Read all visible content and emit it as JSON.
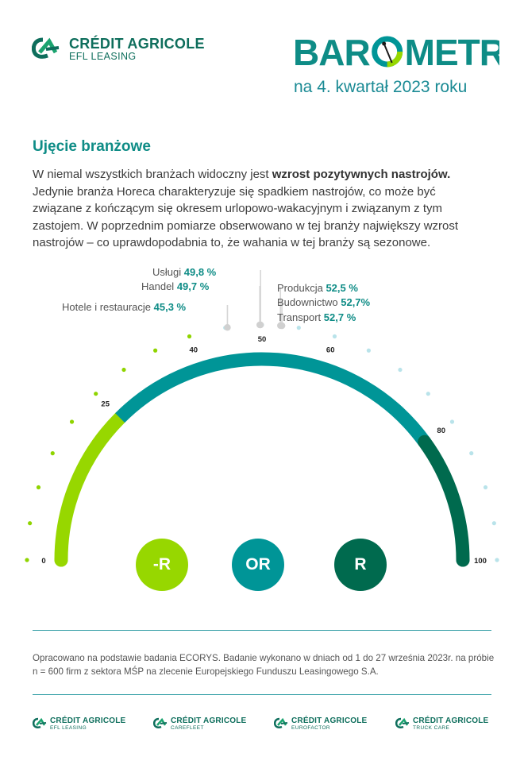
{
  "header": {
    "brand": {
      "name": "CRÉDIT AGRICOLE",
      "division": "EFL LEASING",
      "icon": "credit-agricole-logo-icon"
    },
    "report_title": "BAROMETR",
    "period": "na 4. kwartał 2023 roku"
  },
  "section": {
    "title": "Ujęcie branżowe",
    "paragraph": {
      "lead": "W niemal wszystkich branżach widoczny jest ",
      "bold": "wzrost pozytywnych nastrojów.",
      "rest": " Jedynie branża Horeca charakteryzuje się spadkiem nastrojów, co może być związane z kończącym się okresem urlopowo-wakacyjnym i związanym z tym zastojem. W poprzednim pomiarze obserwowano w tej branży największy wzrost nastrojów – co uprawdopodabnia to, że wahania w tej branży są sezonowe."
    }
  },
  "gauge": {
    "range": [
      0,
      100
    ],
    "tick_labels": [
      "0",
      "25",
      "40",
      "50",
      "60",
      "80",
      "100"
    ],
    "zones": [
      {
        "label": "-R",
        "from": 0,
        "to": 25,
        "color": "#97d700"
      },
      {
        "label": "OR",
        "from": 25,
        "to": 80,
        "color": "#009597"
      },
      {
        "label": "R",
        "from": 80,
        "to": 100,
        "color": "#006a4e"
      }
    ],
    "callouts": [
      {
        "name": "Usługi",
        "value": "49,8 %"
      },
      {
        "name": "Handel",
        "value": "49,7 %"
      },
      {
        "name": "Hotele i restauracje",
        "value": "45,3 %"
      },
      {
        "name": "Produkcja",
        "value": "52,5 %"
      },
      {
        "name": "Budownictwo",
        "value": "52,7%"
      },
      {
        "name": "Transport",
        "value": "52,7 %"
      }
    ]
  },
  "footer": {
    "source": "Opracowano na podstawie badania ECORYS. Badanie wykonano w dniach od 1 do 27 września 2023r. na próbie n = 600 firm z sektora MŚP na zlecenie Europejskiego Funduszu Leasingowego S.A.",
    "logos": [
      {
        "name": "CRÉDIT AGRICOLE",
        "sub": "EFL LEASING"
      },
      {
        "name": "CRÉDIT AGRICOLE",
        "sub": "CAREFLEET"
      },
      {
        "name": "CRÉDIT AGRICOLE",
        "sub": "EUROFACTOR"
      },
      {
        "name": "CRÉDIT AGRICOLE",
        "sub": "TRUCK CARE"
      }
    ]
  },
  "colors": {
    "teal": "#009597",
    "dark_green": "#006a4e",
    "lime": "#97d700",
    "brand_green": "#0e6e5c"
  }
}
